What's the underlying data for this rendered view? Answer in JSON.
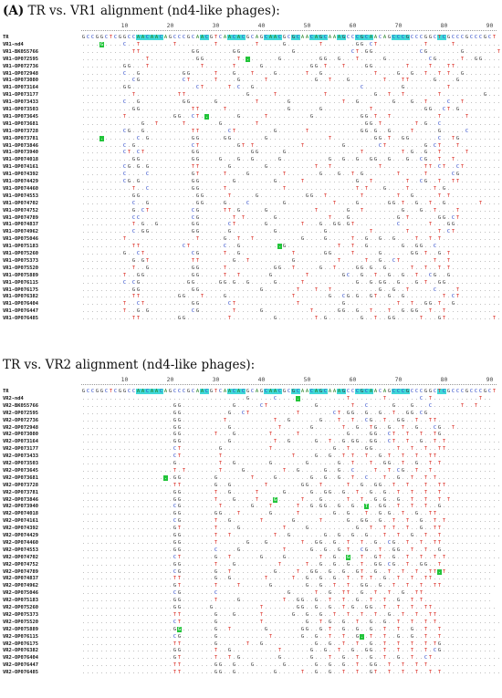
{
  "sectionA": {
    "label": "(A)",
    "title": "TR vs. VR1 alignment (nd4-like phages):",
    "ruler": [
      "10",
      "20",
      "30",
      "40",
      "50",
      "60",
      "70",
      "80",
      "90"
    ],
    "ref_name": "TR",
    "ref_seq": "GCCGGCTCGGCCAACAACAGCCCGCAACGTCAACACGCAGCAACGCGCAACAGCAAAGCCCGCAACAGCCCGCCCGGCTCGCCCGCCCGCT",
    "rows": [
      {
        "name": "VR1-nd4",
        "seq": "....G....C..T.......T........T........T.....G.......T.......GG.CT..........T.....T.........."
      },
      {
        "name": "VR1-BK055766",
        "seq": "...........TT...........GG.......GG...........G............CT.GG..........CG.......G.......T"
      },
      {
        "name": "VR1-OP072595",
        "seq": "..............T..........GG.......T........G........GG..G...T.....G.........CG.....T..GG...."
      },
      {
        "name": "VR1-OP072736",
        "seq": ".........GG...T...........T......T.....G..........GG.T...T....GG.......T....T...TT.........."
      },
      {
        "name": "VR1-OP072948",
        "seq": ".........C..G.........GG.....T...G...T....G......T..G...........T....G..G..T..T.T..G........."
      },
      {
        "name": "VR1-OP073080",
        "seq": "...........CG.........CT.....T....G.....T..........G..T...G.......T...TT.....G....G.........."
      },
      {
        "name": "VR1-OP073164",
        "seq": ".........GG..............CT.....T.C..G.......................C........G.........T..........."
      },
      {
        "name": "VR1-OP073177",
        "seq": "...........T.........TT.............G.....T..........T..........G..T..T.......T.........G...."
      },
      {
        "name": "VR1-OP073433",
        "seq": ".........C..G.........GG.....G........T......G...........T..G.......G...G..T....C..T........"
      },
      {
        "name": "VR1-OP073503",
        "seq": "...........GG...........TT.....T.............G......G..........T...........GG..CT.G........"
      },
      {
        "name": "VR1-OP073645",
        "seq": ".........T..........GG..CT........G.....T.........G..........GG.T..T..........T.....T......."
      },
      {
        "name": "VR1-OP073681",
        "seq": ".............G..T.....T.......G.......T.......................GG.T.......T.G..C.............."
      },
      {
        "name": "VR1-OP073728",
        "seq": ".........CG..G..........TT......CT........G......T...........GG.G..G....T.....G.....C........"
      },
      {
        "name": "VR1-OP073781",
        "seq": "............C.G.........GG.....GG.......G.............T.........GG.T..GG......C..TG.........."
      },
      {
        "name": "VR1-OP073846",
        "seq": ".........C.G............CT........GT.T..........T........G.......CT........G.CT...T.........."
      },
      {
        "name": "VR1-OP073940",
        "seq": ".........CT.CT..........GG...........GG.....G................T........T.G..G..T.....T......."
      },
      {
        "name": "VR1-OP074018",
        "seq": "...........GG...........GG....G...G..G.....G..........G..G..G..GG..G...G..CG..T..T.........."
      },
      {
        "name": "VR1-OP074161",
        "seq": ".........CG.G.G.........TT......G.......G..........T..T..........T.........TT.CT..CT........."
      },
      {
        "name": "VR1-OP074392",
        "seq": ".........C....C.........GT.....T....G.......T.......G...G..T.G.......T.....T.....CG........."
      },
      {
        "name": "VR1-OP074429",
        "seq": ".........CG.G...........GG.......G........G.....T...........G..T.......T..CG..T..TT........."
      },
      {
        "name": "VR1-OP074460",
        "seq": "...........T..C.........GG.....T............T...............T.T...G....T.....T.G............"
      },
      {
        "name": "VR1-OP074553",
        "seq": "...........GG............GG.....T.....G..........GG..T.......T.......T..G.....T.T..........."
      },
      {
        "name": "VR1-OP074702",
        "seq": "...........C..G..........GG....G....C.......G..........T....G......GG.T..G..T..G.......T......"
      },
      {
        "name": "VR1-OP074752",
        "seq": "...........G.CT.........CG.....TT.G.....G..........T......G..T........G...G..T....T.........."
      },
      {
        "name": "VR1-OP074789",
        "seq": "...........CC...........CG.......T.T......G...........T...G..........G.T......GG.CT.........."
      },
      {
        "name": "VR1-OP074837",
        "seq": "...........T.G..G.......GG......CT......G.......T...G..GG.GT.........C......T...GG..........."
      },
      {
        "name": "VR1-OP074962",
        "seq": "...........C.GG.........GG......G.........G..........G.........T.......T......T.CT..........."
      },
      {
        "name": "VR1-OP075046",
        "seq": ".........T...............T.....G..T..T..........G....G.....T..G..G..G....T..T.T............."
      },
      {
        "name": "VR1-OP075183",
        "seq": "...........TT.........CT.......C..G.........G...........T..T..G.......G..GG..C..............."
      },
      {
        "name": "VR1-OP075260",
        "seq": ".........G..CT..........CG.....T..G...........T......GG....T.....G......GG.T..G.T............"
      },
      {
        "name": "VR1-OP075373",
        "seq": "...........G.GT.........TT.......G..T.........G.........T.....T..G..CT.......T..T............."
      },
      {
        "name": "VR1-OP075520",
        "seq": "...........T..G.........GG.....T..........GG..T.....G..T....GG.G..G.....T..T..T.T............"
      },
      {
        "name": "VR1-OP075889",
        "seq": ".........T..GG..........GG.....T..T......G.......T.......GC..G..T..G..G..T..CG..G............"
      },
      {
        "name": "VR1-OP076115",
        "seq": ".........C.CG..........GG.....GG.G..G.....G.....T...........G..G.GG..G...G.T..GG............."
      },
      {
        "name": "VR1-OP076175",
        "seq": "...........GG...........GG.............G.......T...T..T..........G..G..T.....C....T.........."
      },
      {
        "name": "VR1-OP076382",
        "seq": "...........TT........GG...T....G..............T.......G..CG.G..GT..G..G........T.CT.........."
      },
      {
        "name": "VR1-OP076404",
        "seq": ".........T..CT..........GG......CT.............T.........G...........T..T..GG.T..G............"
      },
      {
        "name": "VR1-OP076447",
        "seq": ".........T..G.G.........CG.......T.....G..........T.....GG..G..T...T..G.GG..T..T............."
      },
      {
        "name": "VR1-OP076485",
        "seq": "...........TT........GG.........T.........G........T.G.......G..T..GG.....T...GT..........T.."
      }
    ]
  },
  "sectionB": {
    "title": "TR vs. VR2 alignment (nd4-like phages):",
    "ruler": [
      "10",
      "20",
      "30",
      "40",
      "50",
      "60",
      "70",
      "80",
      "90"
    ],
    "ref_name": "TR",
    "ref_seq": "GCCGGCTCGGCCAACAACAGCCCGCAACGTCAACACGCAGCAACGCGCAACAGCAAAGCCCGCAACAGCCCGCCCGGCTCGCCCGCCCGCT",
    "rows": [
      {
        "name": "VR2-nd4",
        "seq": "....................................G.....C...............T.......T.......C.T..........T.."
      },
      {
        "name": "VR2-BK055766",
        "seq": "....................GG...........G.....CT..........G.......T..C.....G...G...C......T..T..."
      },
      {
        "name": "VR2-OP072595",
        "seq": "....................GG..........G..CT..........T.......CT.GG..G..G..T..GG.CG..............."
      },
      {
        "name": "VR2-OP072736",
        "seq": "....................GG.........T..........T..G......G...T..T..CG..T..GG..T..TT............."
      },
      {
        "name": "VR2-OP072948",
        "seq": "....................GG..........G..........T......G......T..G..TG..G..T..G...CG..T........."
      },
      {
        "name": "VR2-OP073080",
        "seq": "....................GG.......T...G.......T.....T..........G....GG..CT..T..T..TG............"
      },
      {
        "name": "VR2-OP073164",
        "seq": "....................GG..........G.........T..G.....G..T..G.GG..GG..CT..T..G..T.T............"
      },
      {
        "name": "VR2-OP073177",
        "seq": "....................CT........G..........T.............G..T...GG.....T..T..T..TT............"
      },
      {
        "name": "VR2-OP073433",
        "seq": "....................CT........T...............T....G..G..T.T..T..G.T..T..T..TT............."
      },
      {
        "name": "VR2-OP073503",
        "seq": "....................G.........T..G.......G.......G......G..T...T..GG..T..G..T.T............"
      },
      {
        "name": "VR2-OP073645",
        "seq": "....................T.T.......T....G........T..G.....G..G..C....T..T.CG..T..T.............."
      },
      {
        "name": "VR2-OP073681",
        "seq": "....................GG.......G.......T....G.......G..G..G..T..C...T..G..T..T.T............."
      },
      {
        "name": "VR2-OP073728",
        "seq": "....................TT.......G..G.......T.......GG..T.....T..G..GG..T..T...T..TT............"
      },
      {
        "name": "VR2-OP073781",
        "seq": "....................GG.......T..G.....T.....G.....G..GG..G..T..G..G..T..T..T..T............."
      },
      {
        "name": "VR2-OP073846",
        "seq": "....................GG.......T...G....T...G.....T...G.....T..T..G.G..G..T..T..T.T..........."
      },
      {
        "name": "VR2-OP073940",
        "seq": "....................CG........T......G...T.....T..G.GG..G..G..T..GG..T..T..T..G............"
      },
      {
        "name": "VR2-OP074018",
        "seq": "....................GG.......GG...T......G.....T.......G..G...T..G.G..T..G..TT..............."
      },
      {
        "name": "VR2-OP074161",
        "seq": "....................CG.......T..G......T......G.....T.....G..GG..G..T..T..G..T.T............"
      },
      {
        "name": "VR2-OP074392",
        "seq": "....................GT.......T....G.........T....G..........G..T..T.T..T..G..TT............."
      },
      {
        "name": "VR2-OP074429",
        "seq": "....................GG.......T..T.........T..G.......G..G..G..G...T..T..G..T..T............."
      },
      {
        "name": "VR2-OP074460",
        "seq": "....................GG.......T......G...G.......T..GG..G..T..T..G..CG..T..T..TT............"
      },
      {
        "name": "VR2-OP074553",
        "seq": "....................GG.......C....G.........T.....G..G..G.T..CG..T..GG..T..T..G............"
      },
      {
        "name": "VR2-OP074702",
        "seq": "....................CT.......G..T......G....G.......T..G..G..T..GT..G..T..T..T.T............"
      },
      {
        "name": "VR2-OP074752",
        "seq": "....................GG.......T...G.........T.....T..G..G..G..T..GG.CG..T..GG..T............"
      },
      {
        "name": "VR2-OP074789",
        "seq": "....................CG.......G..T.........G....T..GG..G..G..GT..G..T..T..T..TT.T..........."
      },
      {
        "name": "VR2-OP074837",
        "seq": "....................TT.......G..G.......T.....T..G..G..G..T..T.T..G..T..T..TT............."
      },
      {
        "name": "VR2-OP074962",
        "seq": "....................GT.......T....T......G.......G..G..T..T..GG..G..T..T..T..TT............"
      },
      {
        "name": "VR2-OP075046",
        "seq": "....................CG.......C...............G.....T..G..TT..G..T..T..G..TT..............."
      },
      {
        "name": "VR2-OP075183",
        "seq": "....................GG.......T....G.........T..GG..G..T..T..G..T..T..G..T.T..............."
      },
      {
        "name": "VR2-OP075260",
        "seq": "....................GG......G..........T.......GG..G..G..T.G..GG..T..T..T..TT.............."
      },
      {
        "name": "VR2-OP075373",
        "seq": "....................TT.......G...G.....T......G..G..G..T..T..T..T..G..T..T..TT............."
      },
      {
        "name": "VR2-OP075520",
        "seq": "....................CT.......G.........T.........G..T.G..G..T..G..G..T..T..T.T.............."
      },
      {
        "name": "VR2-OP075889",
        "seq": "....................GG.......G..T.......G.......GG..G.T..G..G..G..T..T..G..T..T............"
      },
      {
        "name": "VR2-OP076115",
        "seq": "....................CG.......G...........T......G..G..T..T..G..T..T..G..G..T..T............"
      },
      {
        "name": "VR2-OP076175",
        "seq": "....................TT.......G......T..G...........G..G..T..T..G..T..T..T..T.TG............"
      },
      {
        "name": "VR2-OP076382",
        "seq": "....................GG.......T..G..........T......G..G..T..G..GG..T..T..T..T.CG............"
      },
      {
        "name": "VR2-OP076404",
        "seq": "....................GT.......T..T.G........G......G...T..G..T..G..T..G..T..CT..............."
      },
      {
        "name": "VR2-OP076447",
        "seq": "....................TT.......GG..G...G......G......G..G..G..T..GG..T..T..T.T..............."
      },
      {
        "name": "VR2-OP076485",
        "seq": "....................TT.......GG..G........G.....T..G..G..T..T..GT..T..T..T..T.T............."
      }
    ]
  }
}
